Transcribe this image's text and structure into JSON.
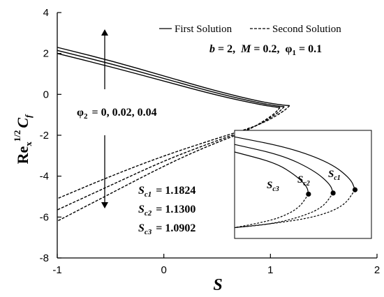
{
  "chart_data": {
    "type": "line",
    "xlabel": "S",
    "ylabel_parts": {
      "base": "Re",
      "sub": "x",
      "sup": "1/2",
      "tail": "C",
      "tail_sub": "f"
    },
    "xlim": [
      -1,
      2
    ],
    "ylim": [
      -8,
      4
    ],
    "xticks": [
      -1,
      0,
      1,
      2
    ],
    "yticks": [
      -8,
      -6,
      -4,
      -2,
      0,
      2,
      4
    ],
    "grid": false,
    "legend_position": "top-right",
    "legend": [
      {
        "label": "First Solution",
        "style": "solid"
      },
      {
        "label": "Second Solution",
        "style": "dashed"
      }
    ],
    "params_line": {
      "b_label": "b",
      "b_value": "= 2,",
      "M_label": "M",
      "M_value": "= 0.2,",
      "phi_label": "φ",
      "phi_sub": "1",
      "phi_value": "= 0.1"
    },
    "phi2_annotation": {
      "label": "φ",
      "sub": "2",
      "text": "= 0, 0.02, 0.04"
    },
    "critical_values": [
      {
        "label": "S",
        "sub": "c1",
        "value": "= 1.1824"
      },
      {
        "label": "S",
        "sub": "c2",
        "value": "= 1.1300"
      },
      {
        "label": "S",
        "sub": "c3",
        "value": "= 1.0902"
      }
    ],
    "inset_labels": [
      {
        "label": "S",
        "sub": "c3"
      },
      {
        "label": "S",
        "sub": "c2"
      },
      {
        "label": "S",
        "sub": "c1"
      }
    ],
    "series": [
      {
        "name": "First Solution, φ2 = 0",
        "style": "solid",
        "points": [
          [
            -1,
            2.3
          ],
          [
            -0.5,
            1.65
          ],
          [
            0,
            0.9
          ],
          [
            0.5,
            0.15
          ],
          [
            0.9,
            -0.35
          ],
          [
            1.1,
            -0.52
          ],
          [
            1.18,
            -0.55
          ]
        ]
      },
      {
        "name": "First Solution, φ2 = 0.02",
        "style": "solid",
        "points": [
          [
            -1,
            2.15
          ],
          [
            -0.5,
            1.5
          ],
          [
            0,
            0.78
          ],
          [
            0.5,
            0.05
          ],
          [
            0.9,
            -0.43
          ],
          [
            1.08,
            -0.58
          ],
          [
            1.13,
            -0.6
          ]
        ]
      },
      {
        "name": "First Solution, φ2 = 0.04",
        "style": "solid",
        "points": [
          [
            -1,
            2.0
          ],
          [
            -0.5,
            1.35
          ],
          [
            0,
            0.65
          ],
          [
            0.5,
            -0.05
          ],
          [
            0.9,
            -0.5
          ],
          [
            1.05,
            -0.62
          ],
          [
            1.09,
            -0.64
          ]
        ]
      },
      {
        "name": "Second Solution, φ2 = 0",
        "style": "dashed",
        "points": [
          [
            1.18,
            -0.55
          ],
          [
            1.12,
            -0.85
          ],
          [
            0.9,
            -1.5
          ],
          [
            0.5,
            -2.15
          ],
          [
            0,
            -3.0
          ],
          [
            -0.5,
            -4.0
          ],
          [
            -1,
            -5.1
          ]
        ]
      },
      {
        "name": "Second Solution, φ2 = 0.02",
        "style": "dashed",
        "points": [
          [
            1.13,
            -0.6
          ],
          [
            1.07,
            -0.92
          ],
          [
            0.85,
            -1.62
          ],
          [
            0.45,
            -2.35
          ],
          [
            0,
            -3.25
          ],
          [
            -0.5,
            -4.45
          ],
          [
            -1,
            -5.65
          ]
        ]
      },
      {
        "name": "Second Solution, φ2 = 0.04",
        "style": "dashed",
        "points": [
          [
            1.09,
            -0.64
          ],
          [
            1.03,
            -1.0
          ],
          [
            0.8,
            -1.75
          ],
          [
            0.4,
            -2.55
          ],
          [
            0,
            -3.5
          ],
          [
            -0.5,
            -4.85
          ],
          [
            -1,
            -6.2
          ]
        ]
      }
    ],
    "inset_curves": [
      {
        "solid": [
          [
            0.0,
            0.06
          ],
          [
            0.4,
            0.16
          ],
          [
            0.7,
            0.3
          ],
          [
            0.85,
            0.45
          ],
          [
            0.88,
            0.55
          ]
        ],
        "dashed": [
          [
            0.88,
            0.55
          ],
          [
            0.8,
            0.7
          ],
          [
            0.6,
            0.8
          ],
          [
            0.3,
            0.86
          ],
          [
            0.0,
            0.9
          ]
        ]
      },
      {
        "solid": [
          [
            0.0,
            0.13
          ],
          [
            0.35,
            0.23
          ],
          [
            0.58,
            0.37
          ],
          [
            0.7,
            0.5
          ],
          [
            0.72,
            0.58
          ]
        ],
        "dashed": [
          [
            0.72,
            0.58
          ],
          [
            0.64,
            0.72
          ],
          [
            0.46,
            0.81
          ],
          [
            0.25,
            0.87
          ],
          [
            0.0,
            0.9
          ]
        ]
      },
      {
        "solid": [
          [
            0.0,
            0.2
          ],
          [
            0.3,
            0.3
          ],
          [
            0.45,
            0.42
          ],
          [
            0.53,
            0.52
          ],
          [
            0.54,
            0.59
          ]
        ],
        "dashed": [
          [
            0.54,
            0.59
          ],
          [
            0.47,
            0.72
          ],
          [
            0.33,
            0.81
          ],
          [
            0.17,
            0.86
          ],
          [
            0.0,
            0.9
          ]
        ]
      }
    ]
  }
}
